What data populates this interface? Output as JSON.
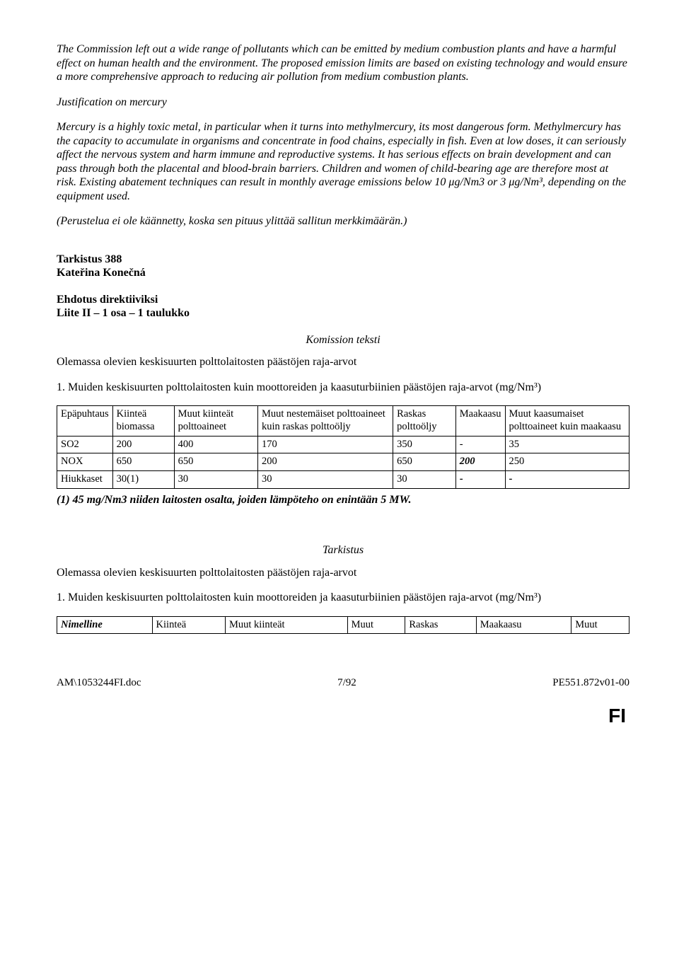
{
  "para1": "The Commission left out a wide range of pollutants which can be emitted by medium combustion plants and have a harmful effect on human health and the environment. The proposed emission limits are based on existing technology and would ensure a more comprehensive approach to reducing air pollution from medium combustion plants.",
  "justHeading": "Justification on mercury",
  "para2": "Mercury is a highly toxic metal, in particular when it turns into methylmercury, its most dangerous form. Methylmercury has the capacity to accumulate in organisms and concentrate in food chains, especially in fish. Even at low doses, it can seriously affect the nervous system and harm immune and reproductive systems. It has serious effects on brain development and can pass through both the placental and blood-brain barriers. Children and women of child-bearing age are therefore most at risk. Existing abatement techniques can result in monthly average emissions below 10 μg/Nm3 or 3 μg/Nm³, depending on the equipment used.",
  "para3": "(Perustelua ei ole käännetty, koska sen pituus ylittää sallitun merkkimäärän.)",
  "amendNum": "Tarkistus 388",
  "amendAuthor": "Kateřina Konečná",
  "proposal": "Ehdotus direktiiviksi",
  "annex": "Liite II – 1 osa – 1 taulukko",
  "komTeksti": "Komission teksti",
  "sent1": "Olemassa olevien keskisuurten polttolaitosten päästöjen raja-arvot",
  "sent2": "1. Muiden keskisuurten polttolaitosten kuin moottoreiden ja kaasuturbiinien päästöjen raja-arvot (mg/Nm³)",
  "table1": {
    "headers": [
      "Epäpuhtaus",
      "Kiinteä biomassa",
      "Muut kiinteät polttoaineet",
      "Muut nestemäiset polttoaineet kuin raskas polttoöljy",
      "Raskas polttoöljy",
      "Maakaasu",
      "Muut kaasumaiset polttoaineet kuin maakaasu"
    ],
    "rows": [
      [
        "SO2",
        "200",
        "400",
        "170",
        "350",
        "-",
        "35"
      ],
      [
        "NOX",
        "650",
        "650",
        "200",
        "650",
        "200",
        "250"
      ],
      [
        "Hiukkaset",
        "30(1)",
        "30",
        "30",
        "30",
        "-",
        "-"
      ]
    ],
    "nox_bold_col": 5,
    "footnote": "(1) 45 mg/Nm3 niiden laitosten osalta, joiden lämpöteho on enintään 5 MW."
  },
  "tarkistus": "Tarkistus",
  "sent3": "Olemassa olevien keskisuurten polttolaitosten päästöjen raja-arvot",
  "sent4": "1. Muiden keskisuurten polttolaitosten kuin moottoreiden ja kaasuturbiinien päästöjen raja-arvot (mg/Nm³)",
  "table2": {
    "headers": [
      "Nimelline",
      "Kiinteä",
      "Muut kiinteät",
      "Muut",
      "Raskas",
      "Maakaasu",
      "Muut"
    ],
    "col0_bolditalic": true
  },
  "footer": {
    "left": "AM\\1053244FI.doc",
    "center": "7/92",
    "right": "PE551.872v01-00"
  },
  "fi": "FI"
}
